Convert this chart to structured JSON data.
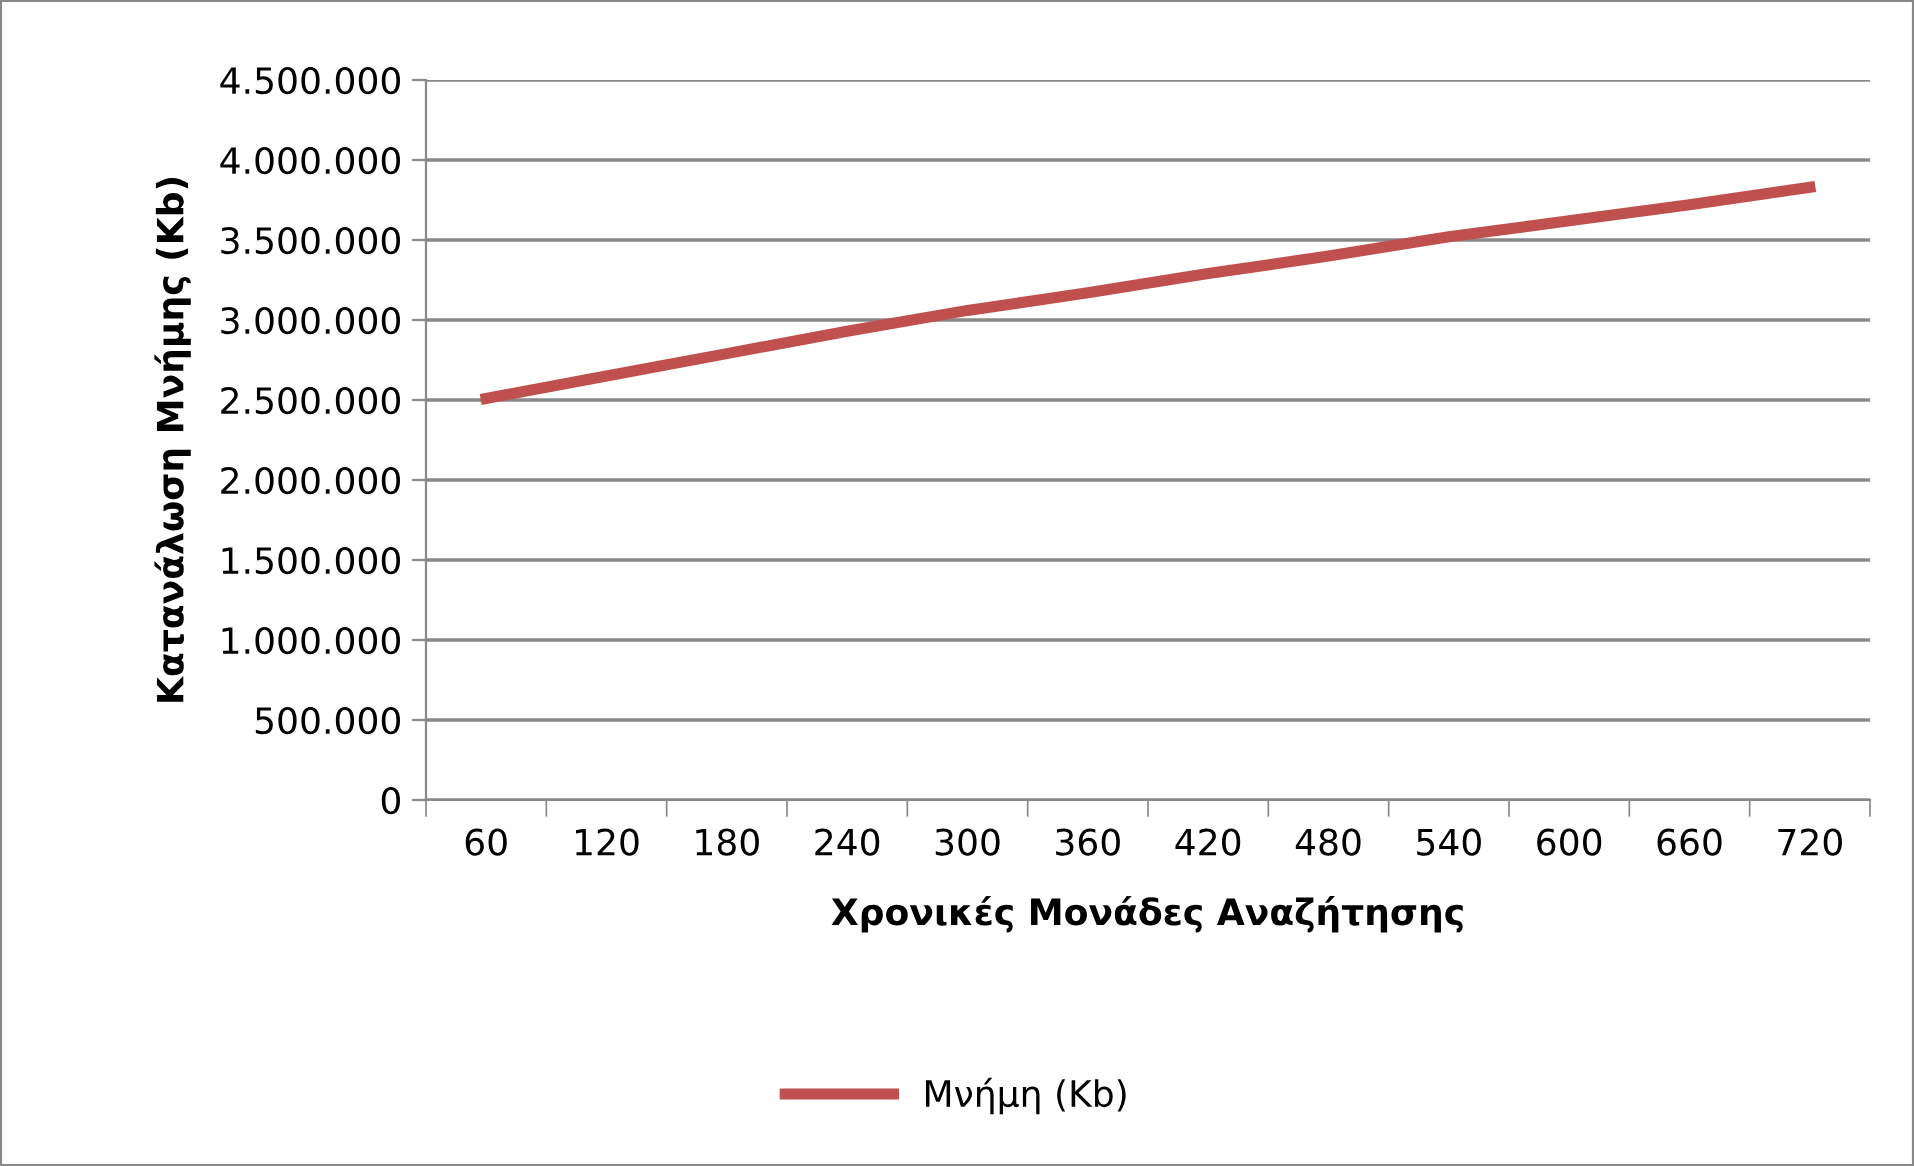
{
  "chart_data": {
    "type": "line",
    "xlabel": "Χρονικές Μονάδες Αναζήτησης",
    "ylabel": "Κατανάλωση Μνήμης (Kb)",
    "categories": [
      "60",
      "120",
      "180",
      "240",
      "300",
      "360",
      "420",
      "480",
      "540",
      "600",
      "660",
      "720"
    ],
    "series": [
      {
        "name": "Μνήμη (Kb)",
        "color": "#c0504d",
        "values": [
          2510000,
          2650000,
          2790000,
          2930000,
          3060000,
          3170000,
          3290000,
          3400000,
          3520000,
          3620000,
          3720000,
          3830000
        ]
      }
    ],
    "ylim": [
      0,
      4500000
    ],
    "yticks": [
      0,
      {
        "value": 500000,
        "label": "500.000"
      },
      {
        "value": 1000000,
        "label": "1.000.000"
      },
      {
        "value": 1500000,
        "label": "1.500.000"
      },
      {
        "value": 2000000,
        "label": "2.000.000"
      },
      {
        "value": 2500000,
        "label": "2.500.000"
      },
      {
        "value": 3000000,
        "label": "3.000.000"
      },
      {
        "value": 3500000,
        "label": "3.500.000"
      },
      {
        "value": 4000000,
        "label": "4.000.000"
      },
      {
        "value": 4500000,
        "label": "4.500.000"
      }
    ],
    "grid": "y",
    "legend": "bottom",
    "marker": "none",
    "line_style": "solid"
  }
}
